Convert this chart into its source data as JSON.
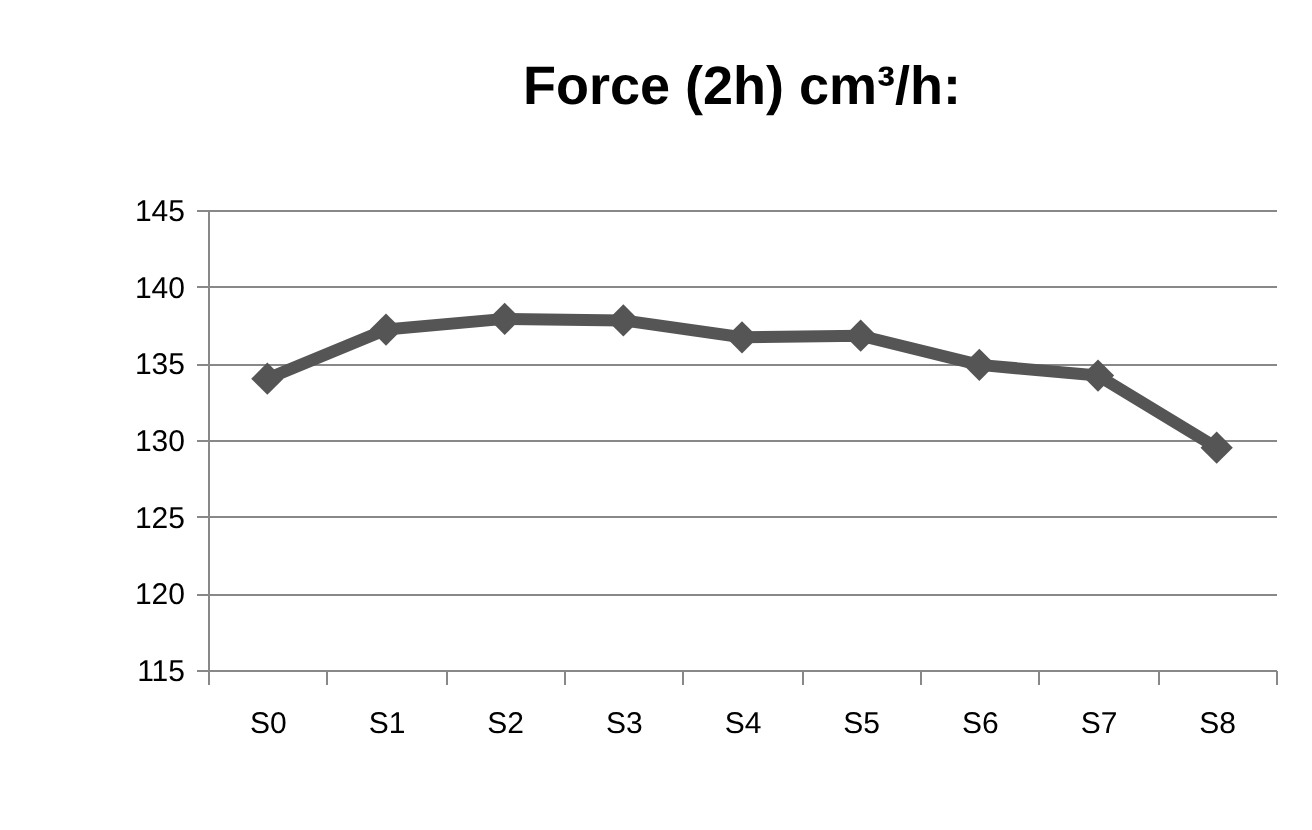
{
  "chart_data": {
    "type": "line",
    "title": "Force (2h) cm³/h:",
    "categories": [
      "S0",
      "S1",
      "S2",
      "S3",
      "S4",
      "S5",
      "S6",
      "S7",
      "S8"
    ],
    "values": [
      134,
      137.2,
      137.9,
      137.8,
      136.7,
      136.8,
      134.9,
      134.2,
      129.5
    ],
    "color": "#555555",
    "marker": "diamond",
    "line_style": "solid",
    "ylim": [
      115,
      145
    ],
    "yticks": [
      115,
      120,
      125,
      130,
      135,
      140,
      145
    ],
    "grid": "y"
  }
}
